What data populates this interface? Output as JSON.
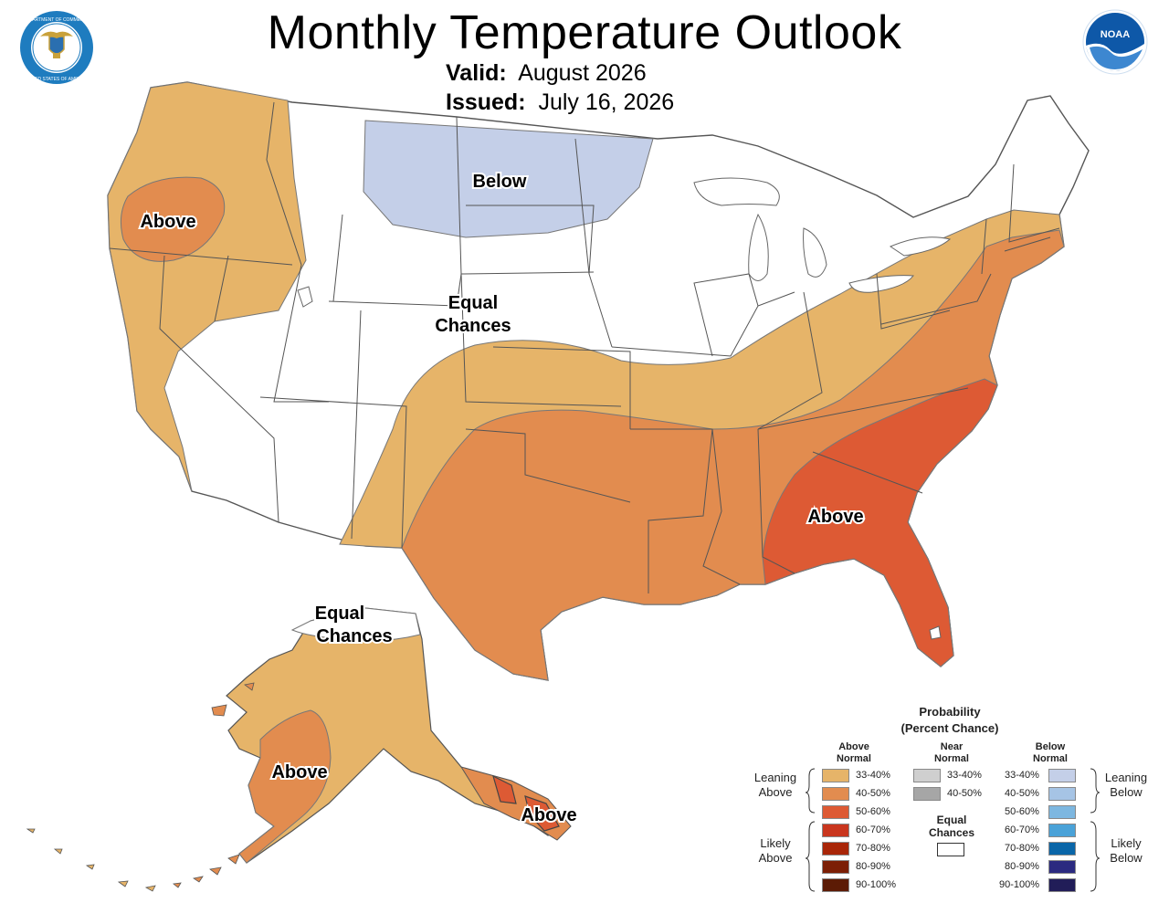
{
  "header": {
    "title": "Monthly Temperature Outlook",
    "valid_label": "Valid:",
    "valid_value": "August 2026",
    "issued_label": "Issued:",
    "issued_value": "July 16, 2026"
  },
  "logos": {
    "left": {
      "icon": "department-of-commerce-seal",
      "text": "DEPARTMENT OF COMMERCE UNITED STATES OF AMERICA"
    },
    "right": {
      "icon": "noaa-logo",
      "text": "NOAA"
    }
  },
  "colors": {
    "above_33_40": "#e6b469",
    "above_40_50": "#e28c4f",
    "above_50_60": "#dd5a34",
    "above_60_70": "#c9361e",
    "above_70_80": "#a92608",
    "above_80_90": "#7c1f05",
    "above_90_100": "#5c1b05",
    "near_33_40": "#cfcfcf",
    "near_40_50": "#a6a6a6",
    "equal": "#ffffff",
    "below_33_40": "#c4cfe8",
    "below_40_50": "#a6c4e5",
    "below_50_60": "#7db7e0",
    "below_60_70": "#4aa2d8",
    "below_70_80": "#0a66a8",
    "below_80_90": "#2b2a80",
    "below_90_100": "#211d58",
    "state_border": "#555555"
  },
  "map": {
    "labels": {
      "above_pnw": "Above",
      "below_north": "Below",
      "equal_chances_conus_1": "Equal",
      "equal_chances_conus_2": "Chances",
      "above_southeast": "Above",
      "equal_chances_alaska_1": "Equal",
      "equal_chances_alaska_2": "Chances",
      "above_alaska_sw": "Above",
      "above_alaska_se": "Above"
    }
  },
  "legend": {
    "title_1": "Probability",
    "title_2": "(Percent Chance)",
    "above_head_1": "Above",
    "above_head_2": "Normal",
    "near_head_1": "Near",
    "near_head_2": "Normal",
    "below_head_1": "Below",
    "below_head_2": "Normal",
    "leaning_above_1": "Leaning",
    "leaning_above_2": "Above",
    "likely_above_1": "Likely",
    "likely_above_2": "Above",
    "leaning_below_1": "Leaning",
    "leaning_below_2": "Below",
    "likely_below_1": "Likely",
    "likely_below_2": "Below",
    "equal_1": "Equal",
    "equal_2": "Chances",
    "above_rows": [
      "33-40%",
      "40-50%",
      "50-60%",
      "60-70%",
      "70-80%",
      "80-90%",
      "90-100%"
    ],
    "near_rows": [
      "33-40%",
      "40-50%"
    ],
    "below_rows": [
      "33-40%",
      "40-50%",
      "50-60%",
      "60-70%",
      "70-80%",
      "80-90%",
      "90-100%"
    ]
  }
}
